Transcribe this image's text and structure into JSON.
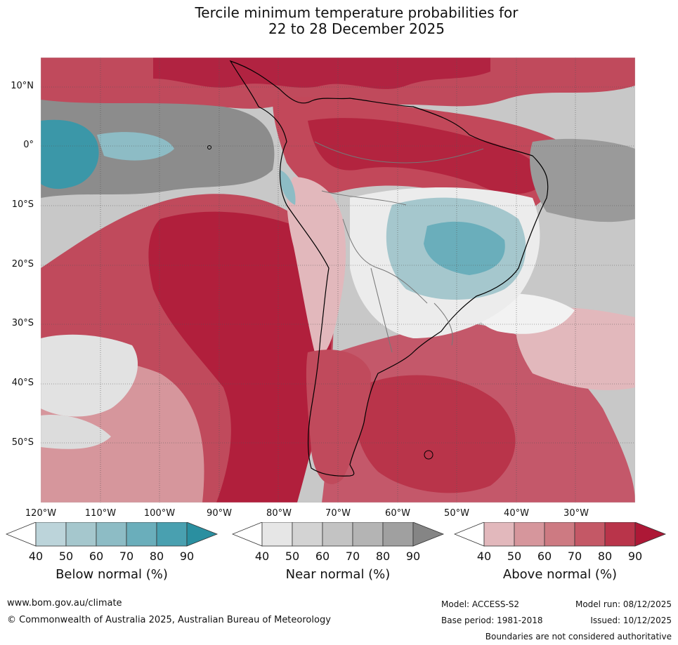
{
  "title": {
    "line1": "Tercile minimum temperature probabilities for",
    "line2": "22 to 28 December 2025"
  },
  "map": {
    "region": "South America and surrounding oceans",
    "lat_labels": [
      "10°N",
      "0°",
      "10°S",
      "20°S",
      "30°S",
      "40°S",
      "50°S"
    ],
    "lon_labels": [
      "120°W",
      "110°W",
      "100°W",
      "90°W",
      "80°W",
      "70°W",
      "60°W",
      "50°W",
      "40°W",
      "30°W"
    ]
  },
  "legends": [
    {
      "title": "Below normal (%)",
      "ticks": [
        "40",
        "50",
        "60",
        "70",
        "80",
        "90"
      ],
      "colors": [
        "#ffffff",
        "#bcd4da",
        "#a5c7cd",
        "#8dbcc5",
        "#6aaebb",
        "#49a0b0",
        "#2a8fa0"
      ]
    },
    {
      "title": "Near normal (%)",
      "ticks": [
        "40",
        "50",
        "60",
        "70",
        "80",
        "90"
      ],
      "colors": [
        "#ffffff",
        "#e6e6e6",
        "#d3d3d3",
        "#c3c3c3",
        "#b4b4b4",
        "#a0a0a0",
        "#858585"
      ]
    },
    {
      "title": "Above normal (%)",
      "ticks": [
        "40",
        "50",
        "60",
        "70",
        "80",
        "90"
      ],
      "colors": [
        "#ffffff",
        "#e2b8bc",
        "#d6969c",
        "#cd7a82",
        "#c45866",
        "#b9344a",
        "#ad1836"
      ]
    }
  ],
  "footer": {
    "website": "www.bom.gov.au/climate",
    "copyright": "© Commonwealth of Australia 2025, Australian Bureau of Meteorology",
    "model": "Model: ACCESS-S2",
    "model_run": "Model run: 08/12/2025",
    "base_period": "Base period: 1981-2018",
    "issued": "Issued: 10/12/2025",
    "disclaimer": "Boundaries are not considered authoritative"
  }
}
